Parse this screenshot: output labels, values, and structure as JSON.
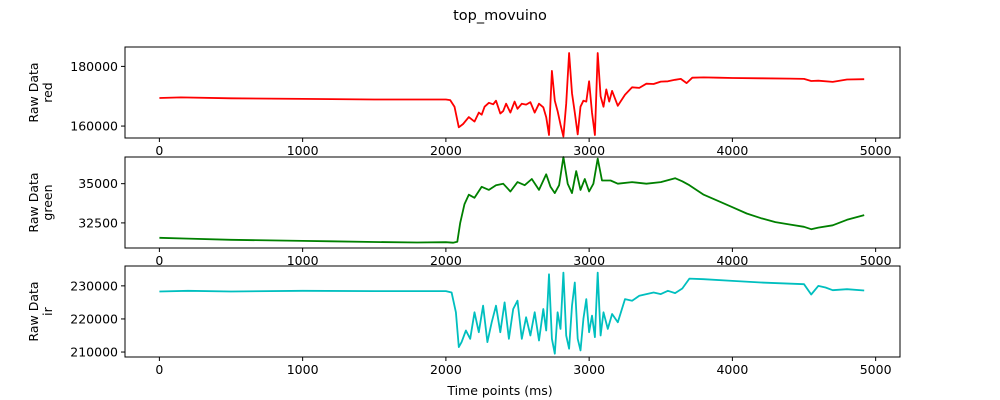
{
  "figure_title": "top_movuino",
  "xlabel": "Time points (ms)",
  "chart_data": [
    {
      "type": "line",
      "ylabel_line1": "Raw Data",
      "ylabel_line2": "red",
      "xlim": [
        -240,
        5170
      ],
      "ylim": [
        156000,
        186500
      ],
      "xticks": [
        0,
        1000,
        2000,
        3000,
        4000,
        5000
      ],
      "yticks": [
        160000,
        180000
      ],
      "ytick_labels": [
        "160000",
        "180000"
      ],
      "color": "#ff0000",
      "series": [
        {
          "x": [
            0,
            150,
            500,
            1000,
            1500,
            2000,
            2030,
            2060,
            2090,
            2120,
            2160,
            2200,
            2230,
            2250,
            2270,
            2300,
            2330,
            2350,
            2380,
            2400,
            2420,
            2450,
            2480,
            2500,
            2530,
            2560,
            2590,
            2620,
            2650,
            2680,
            2700,
            2720,
            2740,
            2760,
            2780,
            2800,
            2820,
            2840,
            2860,
            2880,
            2900,
            2920,
            2940,
            2960,
            2980,
            3000,
            3020,
            3040,
            3060,
            3080,
            3100,
            3120,
            3140,
            3160,
            3200,
            3250,
            3300,
            3350,
            3400,
            3450,
            3500,
            3550,
            3600,
            3640,
            3680,
            3720,
            3800,
            3900,
            4000,
            4200,
            4400,
            4500,
            4550,
            4600,
            4700,
            4800,
            4920
          ],
          "y": [
            169400,
            169600,
            169300,
            169100,
            168900,
            168900,
            168700,
            166500,
            159600,
            160700,
            163000,
            161500,
            164500,
            163800,
            166500,
            167800,
            167300,
            168500,
            164200,
            165000,
            167500,
            164500,
            168200,
            165800,
            167500,
            167200,
            168000,
            164500,
            167500,
            166300,
            163000,
            157000,
            178500,
            168500,
            165000,
            160500,
            156500,
            167500,
            184500,
            171000,
            164500,
            157200,
            166500,
            168500,
            168200,
            175000,
            164500,
            157000,
            184500,
            170000,
            166500,
            172300,
            168200,
            171800,
            166800,
            170500,
            173000,
            172800,
            174200,
            174100,
            174900,
            175000,
            175500,
            175800,
            174400,
            176200,
            176300,
            176200,
            176100,
            176000,
            175900,
            175800,
            175100,
            175200,
            174800,
            175600,
            175700
          ]
        }
      ]
    },
    {
      "type": "line",
      "ylabel_line1": "Raw Data",
      "ylabel_line2": "green",
      "xlim": [
        -240,
        5170
      ],
      "ylim": [
        30900,
        36700
      ],
      "xticks": [
        0,
        1000,
        2000,
        3000,
        4000,
        5000
      ],
      "yticks": [
        32500,
        35000
      ],
      "ytick_labels": [
        "32500",
        "35000"
      ],
      "color": "#008000",
      "series": [
        {
          "x": [
            0,
            200,
            500,
            1000,
            1200,
            1500,
            1800,
            2000,
            2050,
            2080,
            2100,
            2130,
            2160,
            2200,
            2250,
            2300,
            2350,
            2400,
            2450,
            2500,
            2550,
            2600,
            2650,
            2700,
            2730,
            2760,
            2790,
            2820,
            2850,
            2880,
            2910,
            2940,
            2970,
            3000,
            3030,
            3060,
            3090,
            3150,
            3200,
            3300,
            3400,
            3500,
            3600,
            3650,
            3700,
            3800,
            3900,
            4000,
            4100,
            4200,
            4300,
            4400,
            4500,
            4550,
            4600,
            4700,
            4800,
            4920
          ],
          "y": [
            31550,
            31500,
            31420,
            31350,
            31330,
            31280,
            31250,
            31270,
            31240,
            31300,
            32500,
            33700,
            34300,
            34100,
            34800,
            34600,
            34900,
            35000,
            34500,
            35100,
            34900,
            35300,
            34600,
            35600,
            34800,
            34400,
            34900,
            36700,
            35000,
            34400,
            35800,
            34600,
            35300,
            34500,
            35000,
            36600,
            35200,
            35200,
            35000,
            35100,
            35000,
            35100,
            35350,
            35150,
            34900,
            34300,
            33900,
            33500,
            33100,
            32800,
            32550,
            32400,
            32250,
            32100,
            32200,
            32350,
            32700,
            33000
          ]
        }
      ]
    },
    {
      "type": "line",
      "ylabel_line1": "Raw Data",
      "ylabel_line2": "ir",
      "xlim": [
        -240,
        5170
      ],
      "ylim": [
        208500,
        236000
      ],
      "xticks": [
        0,
        1000,
        2000,
        3000,
        4000,
        5000
      ],
      "xtick_labels": [
        "0",
        "1000",
        "2000",
        "3000",
        "4000",
        "5000"
      ],
      "yticks": [
        210000,
        220000,
        230000
      ],
      "ytick_labels": [
        "210000",
        "220000",
        "230000"
      ],
      "color": "#00bfbf",
      "series": [
        {
          "x": [
            0,
            200,
            500,
            1000,
            1500,
            2000,
            2040,
            2070,
            2090,
            2110,
            2140,
            2170,
            2200,
            2230,
            2260,
            2290,
            2320,
            2350,
            2380,
            2410,
            2440,
            2470,
            2500,
            2530,
            2560,
            2590,
            2620,
            2650,
            2680,
            2700,
            2720,
            2740,
            2760,
            2780,
            2800,
            2820,
            2840,
            2860,
            2880,
            2900,
            2920,
            2940,
            2960,
            2980,
            3000,
            3020,
            3040,
            3060,
            3080,
            3100,
            3130,
            3160,
            3200,
            3250,
            3300,
            3350,
            3400,
            3450,
            3500,
            3550,
            3600,
            3650,
            3700,
            3800,
            4000,
            4200,
            4500,
            4550,
            4600,
            4650,
            4700,
            4800,
            4920
          ],
          "y": [
            228300,
            228500,
            228300,
            228500,
            228400,
            228400,
            228000,
            222000,
            211500,
            213000,
            216500,
            214000,
            222000,
            216000,
            224000,
            213000,
            219000,
            224000,
            216000,
            225000,
            214000,
            223000,
            225500,
            214000,
            220500,
            215000,
            222000,
            213500,
            223000,
            216500,
            233500,
            214000,
            209500,
            222000,
            217000,
            234000,
            215000,
            211000,
            224000,
            231000,
            214000,
            210500,
            220000,
            226000,
            216000,
            221000,
            214500,
            234000,
            215000,
            222000,
            217000,
            221500,
            219000,
            226000,
            225500,
            227000,
            227500,
            228000,
            227500,
            228500,
            227800,
            229200,
            232200,
            232000,
            231500,
            231000,
            230500,
            227400,
            230000,
            229500,
            228700,
            229000,
            228600
          ]
        }
      ]
    }
  ]
}
